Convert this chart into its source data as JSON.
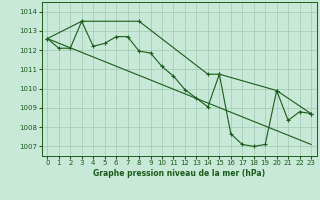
{
  "title": "Graphe pression niveau de la mer (hPa)",
  "bg_color": "#c8e8d8",
  "grid_color": "#a0c8b0",
  "line_color": "#1a5c1a",
  "text_color": "#1a5c1a",
  "xlim": [
    -0.5,
    23.5
  ],
  "ylim": [
    1006.5,
    1014.5
  ],
  "yticks": [
    1007,
    1008,
    1009,
    1010,
    1011,
    1012,
    1013,
    1014
  ],
  "xticks": [
    0,
    1,
    2,
    3,
    4,
    5,
    6,
    7,
    8,
    9,
    10,
    11,
    12,
    13,
    14,
    15,
    16,
    17,
    18,
    19,
    20,
    21,
    22,
    23
  ],
  "series": [
    {
      "x": [
        0,
        1,
        2,
        3,
        4,
        5,
        6,
        7,
        8,
        9,
        10,
        11,
        12,
        13,
        14,
        15,
        16,
        17,
        18,
        19,
        20,
        21,
        22,
        23
      ],
      "y": [
        1012.6,
        1012.1,
        1012.1,
        1013.5,
        1012.2,
        1012.35,
        1012.7,
        1012.7,
        1011.95,
        1011.85,
        1011.15,
        1010.65,
        1009.95,
        1009.5,
        1009.05,
        1010.75,
        1007.65,
        1007.1,
        1007.0,
        1007.1,
        1009.9,
        1008.35,
        1008.8,
        1008.7
      ]
    },
    {
      "x": [
        0,
        3,
        8,
        14,
        15,
        20,
        23
      ],
      "y": [
        1012.6,
        1013.5,
        1013.5,
        1010.75,
        1010.75,
        1009.9,
        1008.7
      ]
    },
    {
      "x": [
        0,
        23
      ],
      "y": [
        1012.6,
        1007.1
      ]
    }
  ],
  "xlabel_fontsize": 5.5,
  "tick_fontsize": 5.0,
  "linewidth": 0.8,
  "markersize": 3.0
}
